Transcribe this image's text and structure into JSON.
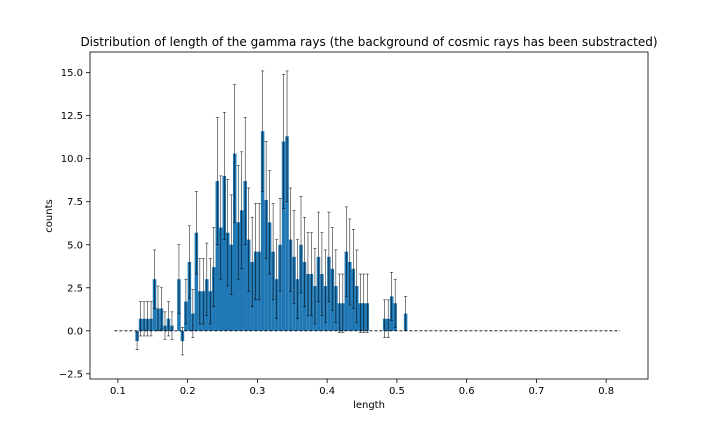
{
  "chart_data": {
    "type": "bar",
    "title": "Distribution of length of the gamma rays (the background of cosmic rays has been substracted)",
    "xlabel": "length",
    "ylabel": "counts",
    "xlim": [
      0.06,
      0.86
    ],
    "ylim": [
      -2.8,
      16.2
    ],
    "xticks": [
      0.1,
      0.2,
      0.3,
      0.4,
      0.5,
      0.6,
      0.7,
      0.8
    ],
    "xtick_labels": [
      "0.1",
      "0.2",
      "0.3",
      "0.4",
      "0.5",
      "0.6",
      "0.7",
      "0.8"
    ],
    "yticks": [
      -2.5,
      0.0,
      2.5,
      5.0,
      7.5,
      10.0,
      12.5,
      15.0
    ],
    "ytick_labels": [
      "−2.5",
      "0.0",
      "2.5",
      "5.0",
      "7.5",
      "10.0",
      "12.5",
      "15.0"
    ],
    "bar_color": "#1f77b4",
    "bin_width": 0.005,
    "bins_left": [
      0.125,
      0.13,
      0.135,
      0.14,
      0.145,
      0.15,
      0.155,
      0.16,
      0.165,
      0.17,
      0.175,
      0.18,
      0.185,
      0.19,
      0.195,
      0.2,
      0.205,
      0.21,
      0.215,
      0.22,
      0.225,
      0.23,
      0.235,
      0.24,
      0.245,
      0.25,
      0.255,
      0.26,
      0.265,
      0.27,
      0.275,
      0.28,
      0.285,
      0.29,
      0.295,
      0.3,
      0.305,
      0.31,
      0.315,
      0.32,
      0.325,
      0.33,
      0.335,
      0.34,
      0.345,
      0.35,
      0.355,
      0.36,
      0.365,
      0.37,
      0.375,
      0.38,
      0.385,
      0.39,
      0.395,
      0.4,
      0.405,
      0.41,
      0.415,
      0.42,
      0.425,
      0.43,
      0.435,
      0.44,
      0.445,
      0.45,
      0.455,
      0.46,
      0.465,
      0.47,
      0.475,
      0.48,
      0.485,
      0.49,
      0.495,
      0.5,
      0.505,
      0.51
    ],
    "values": [
      -0.6,
      0.7,
      0.7,
      0.7,
      0.7,
      3.0,
      1.3,
      1.3,
      0.3,
      0.7,
      0.3,
      0.0,
      3.0,
      -0.6,
      1.7,
      4.0,
      1.0,
      5.7,
      2.3,
      2.3,
      3.0,
      2.3,
      3.7,
      8.7,
      6.0,
      9.0,
      5.7,
      5.0,
      10.3,
      6.3,
      7.0,
      8.7,
      5.3,
      4.0,
      4.6,
      4.6,
      11.6,
      7.6,
      6.3,
      4.6,
      3.0,
      5.0,
      11.0,
      11.3,
      5.3,
      4.3,
      3.0,
      5.0,
      4.0,
      3.3,
      3.3,
      2.6,
      4.3,
      3.3,
      2.6,
      4.3,
      3.6,
      2.6,
      1.6,
      1.6,
      4.6,
      4.0,
      3.6,
      2.6,
      1.6,
      1.6,
      1.6,
      0.0,
      0.0,
      0.0,
      0.0,
      0.7,
      0.7,
      2.0,
      1.6,
      0.0,
      0.0,
      1.0
    ],
    "errors": [
      0.5,
      1.0,
      1.0,
      1.0,
      1.0,
      1.7,
      1.3,
      1.2,
      0.8,
      1.0,
      0.8,
      0.0,
      2.0,
      0.8,
      1.3,
      2.1,
      1.4,
      2.4,
      1.9,
      1.9,
      2.1,
      1.9,
      2.3,
      3.7,
      3.0,
      3.7,
      3.1,
      2.9,
      4.0,
      3.3,
      3.4,
      3.7,
      3.0,
      2.6,
      2.8,
      2.8,
      3.5,
      3.4,
      3.0,
      2.8,
      2.3,
      2.7,
      3.9,
      3.8,
      3.0,
      2.7,
      2.3,
      2.8,
      2.6,
      2.4,
      2.4,
      2.2,
      2.6,
      2.4,
      2.1,
      2.6,
      2.4,
      2.1,
      1.7,
      1.7,
      2.6,
      2.5,
      2.3,
      2.1,
      1.7,
      1.7,
      1.7,
      0.0,
      0.0,
      0.0,
      0.0,
      1.1,
      1.1,
      1.4,
      1.4,
      0.0,
      0.0,
      1.0
    ],
    "baseline": {
      "y": 0.0,
      "x_start": 0.095,
      "x_end": 0.82,
      "style": "dashed"
    }
  }
}
